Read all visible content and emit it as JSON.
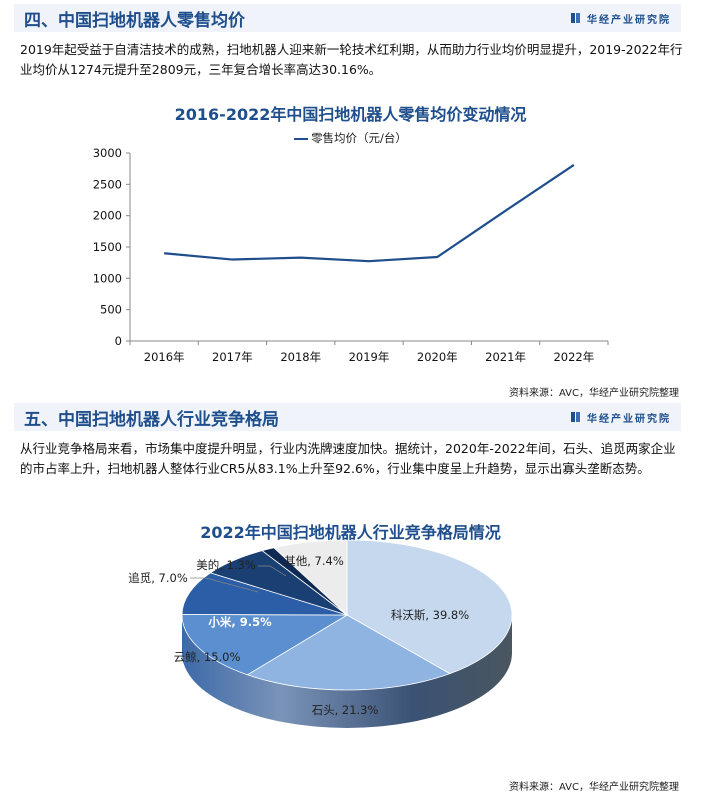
{
  "section4": {
    "title": "四、中国扫地机器人零售均价",
    "brand": "华经产业研究院",
    "paragraph": "2019年起受益于自清洁技术的成熟，扫地机器人迎来新一轮技术红利期，从而助力行业均价明显提升，2019-2022年行业均价从1274元提升至2809元，三年复合增长率高达30.16%。",
    "source": "资料来源：AVC，华经产业研究院整理"
  },
  "section5": {
    "title": "五、中国扫地机器人行业竞争格局",
    "brand": "华经产业研究院",
    "paragraph": "从行业竞争格局来看，市场集中度提升明显，行业内洗牌速度加快。据统计，2020年-2022年间，石头、追觅两家企业的市占率上升，扫地机器人整体行业CR5从83.1%上升至92.6%，行业集中度呈上升趋势，显示出寡头垄断态势。",
    "source": "资料来源：AVC，华经产业研究院整理"
  },
  "watermark": "华经产业研究院",
  "colors": {
    "accent": "#1f4e8c",
    "header_bg": "#f0f4fa"
  },
  "chart_data": [
    {
      "type": "line",
      "title": "2016-2022年中国扫地机器人零售均价变动情况",
      "categories": [
        "2016年",
        "2017年",
        "2018年",
        "2019年",
        "2020年",
        "2021年",
        "2022年"
      ],
      "series": [
        {
          "name": "零售均价（元/台）",
          "values": [
            1400,
            1300,
            1330,
            1274,
            1340,
            2080,
            2809
          ]
        }
      ],
      "xlabel": "",
      "ylabel": "",
      "ylim": [
        0,
        3000
      ],
      "yticks": [
        "0",
        "500",
        "1000",
        "1500",
        "2000",
        "2500",
        "3000"
      ],
      "grid": false,
      "legend_position": "top"
    },
    {
      "type": "pie",
      "title": "2022年中国扫地机器人行业竞争格局情况",
      "labels": [
        "科沃斯",
        "石头",
        "云鲸",
        "小米",
        "追觅",
        "美的",
        "其他"
      ],
      "values": [
        39.8,
        21.3,
        15.0,
        9.5,
        7.0,
        1.3,
        7.4
      ],
      "data_labels": [
        "科沃斯, 39.8%",
        "石头, 21.3%",
        "云鲸, 15.0%",
        "小米, 9.5%",
        "追觅, 7.0%",
        "美的, 1.3%",
        "其他, 7.4%"
      ],
      "colors": [
        "#c5d8ee",
        "#8fb4e2",
        "#5b8fd0",
        "#2b5ea6",
        "#1a3f72",
        "#0f2a52",
        "#ececec"
      ],
      "style": "3d"
    }
  ]
}
